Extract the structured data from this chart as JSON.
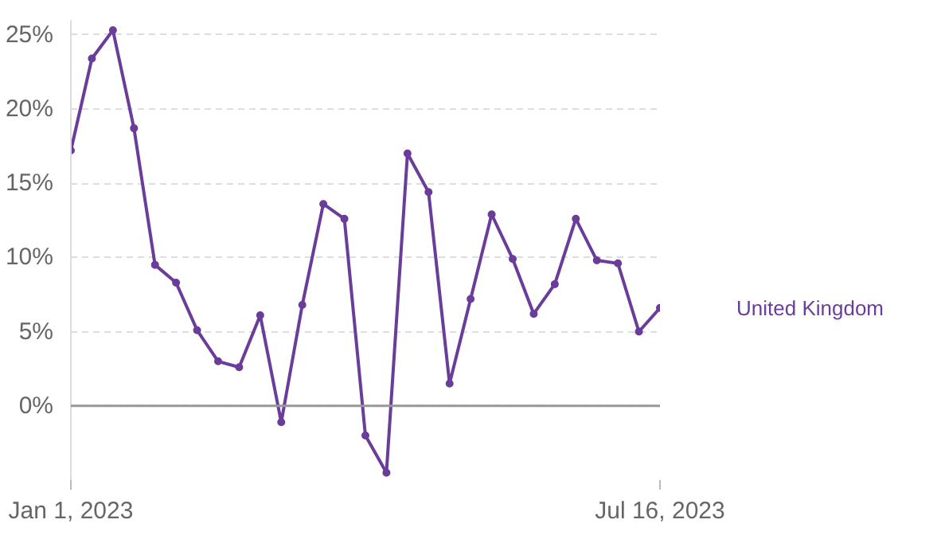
{
  "chart_data": {
    "type": "line",
    "x": [
      "2023-01-01",
      "2023-01-08",
      "2023-01-15",
      "2023-01-22",
      "2023-01-29",
      "2023-02-05",
      "2023-02-12",
      "2023-02-19",
      "2023-02-26",
      "2023-03-05",
      "2023-03-12",
      "2023-03-19",
      "2023-03-26",
      "2023-04-02",
      "2023-04-09",
      "2023-04-16",
      "2023-04-23",
      "2023-04-30",
      "2023-05-07",
      "2023-05-14",
      "2023-05-21",
      "2023-05-28",
      "2023-06-04",
      "2023-06-11",
      "2023-06-18",
      "2023-06-25",
      "2023-07-02",
      "2023-07-09",
      "2023-07-16"
    ],
    "series": [
      {
        "name": "United Kingdom",
        "color": "#6a3d9a",
        "values": [
          17.2,
          23.4,
          25.3,
          18.7,
          9.5,
          8.3,
          5.1,
          3.0,
          2.6,
          6.1,
          -1.1,
          6.8,
          13.6,
          12.6,
          -2.0,
          -4.5,
          17.0,
          14.4,
          1.5,
          7.2,
          12.9,
          9.9,
          6.2,
          8.2,
          12.6,
          9.8,
          9.6,
          5.0,
          6.6
        ]
      }
    ],
    "xlim": [
      "2023-01-01",
      "2023-07-16"
    ],
    "xticks": [
      {
        "value": "2023-01-01",
        "label": "Jan 1, 2023"
      },
      {
        "value": "2023-07-16",
        "label": "Jul 16, 2023"
      }
    ],
    "ylim": [
      -5,
      26
    ],
    "yticks": [
      {
        "value": 0,
        "label": "0%"
      },
      {
        "value": 5,
        "label": "5%"
      },
      {
        "value": 10,
        "label": "10%"
      },
      {
        "value": 15,
        "label": "15%"
      },
      {
        "value": 20,
        "label": "20%"
      },
      {
        "value": 25,
        "label": "25%"
      }
    ],
    "ref_lines": [
      {
        "axis": "y",
        "value": 0,
        "color": "#999999",
        "line_style": "solid"
      }
    ],
    "grid": "y",
    "marker": "circle",
    "line_style": "solid",
    "legend": false
  }
}
